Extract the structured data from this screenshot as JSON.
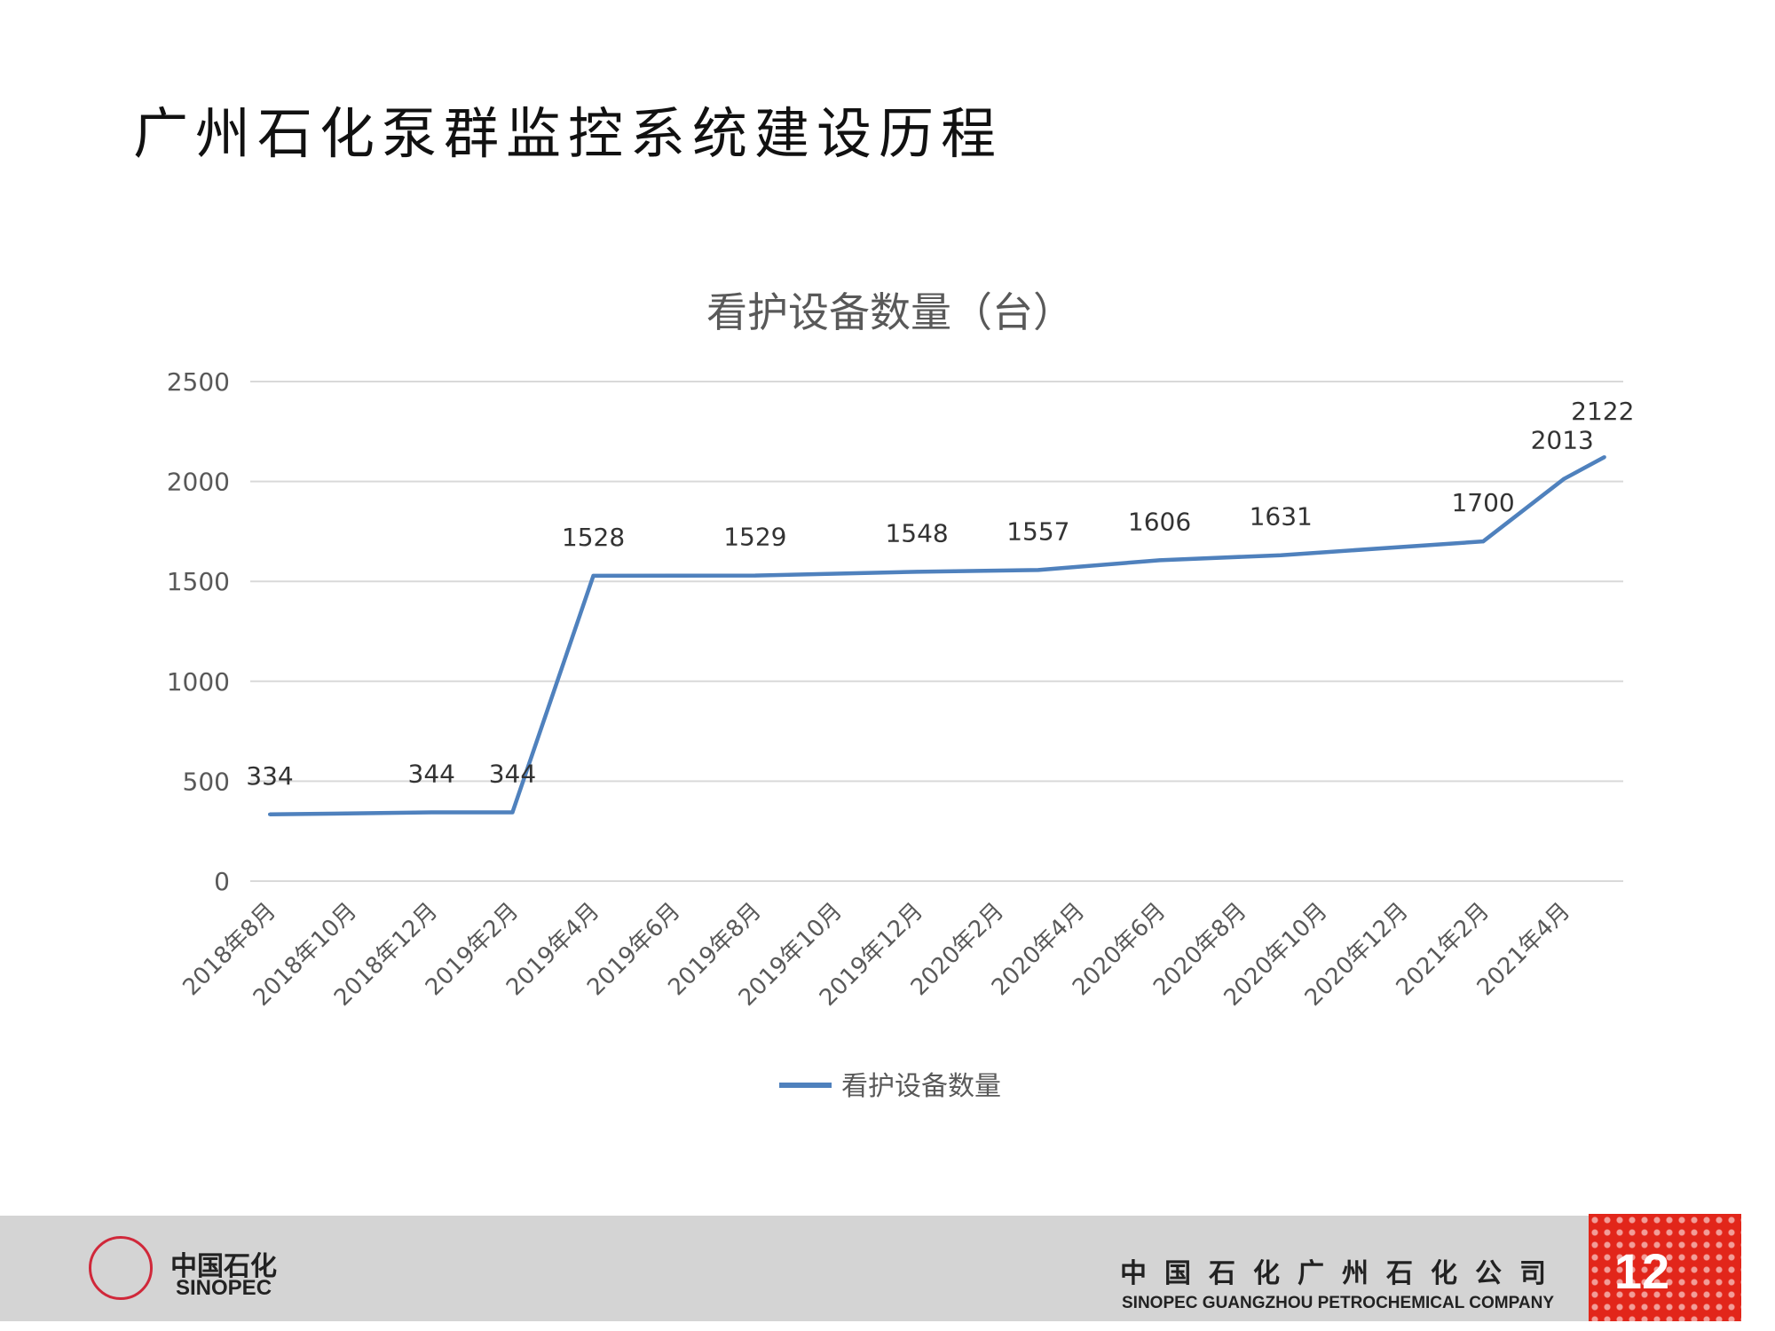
{
  "slide": {
    "title": "广州石化泵群监控系统建设历程",
    "page_number": "12"
  },
  "footer": {
    "logo_cn": "中国石化",
    "logo_en": "SINOPEC",
    "company_cn": "中国石化广州石化公司",
    "company_en": "SINOPEC GUANGZHOU PETROCHEMICAL COMPANY"
  },
  "colors": {
    "series": "#4f81bd",
    "grid": "#d9d9d9",
    "text": "#595959",
    "footer_red": "#e2261a"
  },
  "chart_data": {
    "type": "line",
    "title": "看护设备数量（台）",
    "xlabel": "",
    "ylabel": "",
    "ylim": [
      0,
      2500
    ],
    "yticks": [
      0,
      500,
      1000,
      1500,
      2000,
      2500
    ],
    "xticks": [
      "2018年8月",
      "2018年10月",
      "2018年12月",
      "2019年2月",
      "2019年4月",
      "2019年6月",
      "2019年8月",
      "2019年10月",
      "2019年12月",
      "2020年2月",
      "2020年4月",
      "2020年6月",
      "2020年8月",
      "2020年10月",
      "2020年12月",
      "2021年2月",
      "2021年4月"
    ],
    "grid": true,
    "legend": "bottom",
    "series": [
      {
        "name": "看护设备数量",
        "x": [
          "2018-08",
          "2018-12",
          "2019-02",
          "2019-04",
          "2019-08",
          "2019-12",
          "2020-03",
          "2020-06",
          "2020-09",
          "2021-02",
          "2021-04",
          "2021-05"
        ],
        "values": [
          334,
          344,
          344,
          1528,
          1529,
          1548,
          1557,
          1606,
          1631,
          1700,
          2013,
          2122
        ]
      }
    ]
  }
}
